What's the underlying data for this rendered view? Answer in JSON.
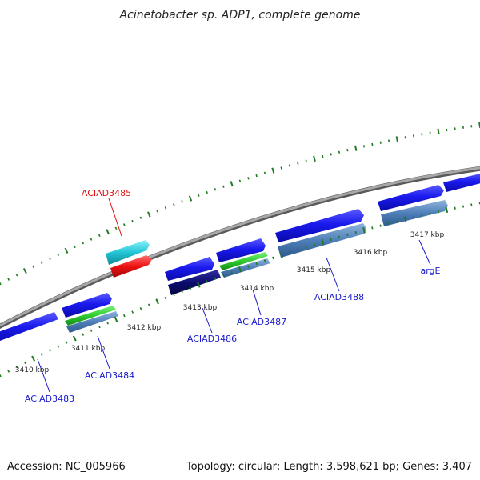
{
  "title": "Acinetobacter sp. ADP1, complete genome",
  "footer": {
    "accession": "Accession: NC_005966",
    "summary": "Topology: circular; Length: 3,598,621 bp; Genes: 3,407"
  },
  "colors": {
    "background": "#ffffff",
    "backbone": "#8c8c8c",
    "tick": "#1f7a1f",
    "label_blue": "#1a1acc",
    "label_red": "#dd1111",
    "gene_blue": "#1a1aee",
    "gene_steel": "#4f7fb8",
    "gene_navy": "#0c0c70",
    "gene_green": "#2ecc2e",
    "gene_cyan": "#22c6d6",
    "gene_red": "#ee1111"
  },
  "scale_labels": [
    "3410 kbp",
    "3411 kbp",
    "3412 kbp",
    "3413 kbp",
    "3414 kbp",
    "3415 kbp",
    "3416 kbp",
    "3417 kbp"
  ],
  "gene_labels": [
    {
      "name": "ACIAD3483",
      "highlight": false
    },
    {
      "name": "ACIAD3484",
      "highlight": false
    },
    {
      "name": "ACIAD3485",
      "highlight": true
    },
    {
      "name": "ACIAD3486",
      "highlight": false
    },
    {
      "name": "ACIAD3487",
      "highlight": false
    },
    {
      "name": "ACIAD3488",
      "highlight": false
    },
    {
      "name": "argE",
      "highlight": false
    }
  ]
}
